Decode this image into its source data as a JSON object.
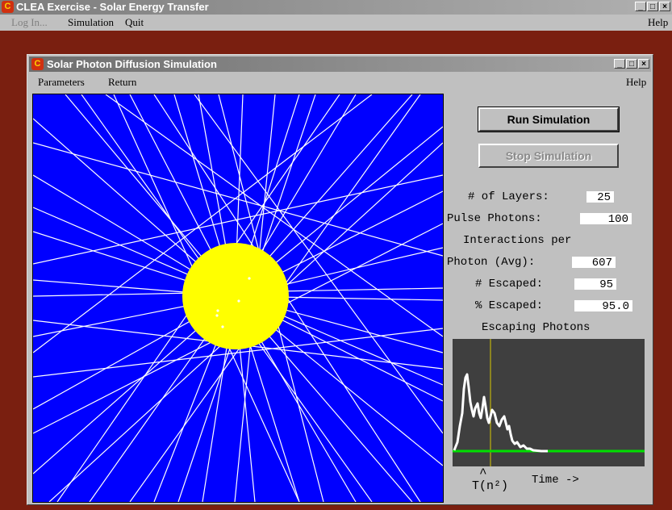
{
  "app": {
    "title": "CLEA Exercise - Solar Energy Transfer",
    "menu": {
      "login": "Log In...",
      "simulation": "Simulation",
      "quit": "Quit",
      "help": "Help"
    }
  },
  "window": {
    "title": "Solar Photon Diffusion Simulation",
    "menu": {
      "parameters": "Parameters",
      "return": "Return",
      "help": "Help"
    }
  },
  "controls": {
    "run_label": "Run Simulation",
    "stop_label": "Stop Simulation"
  },
  "stats": {
    "layers_label": "# of Layers:",
    "layers_value": "25",
    "pulse_label": "Pulse Photons:",
    "pulse_value": "100",
    "interactions_label_1": "Interactions per",
    "interactions_label_2": "Photon (Avg):",
    "interactions_value": "607",
    "escaped_label": "# Escaped:",
    "escaped_value": "95",
    "pct_escaped_label": "% Escaped:",
    "pct_escaped_value": "95.0"
  },
  "graph": {
    "title": "Escaping Photons",
    "xlabel": "Time ->",
    "marker_label": "T(n²)",
    "marker_hat": "^"
  },
  "colors": {
    "sky": "#0000ff",
    "sun": "#ffff00",
    "rays": "#ffffff",
    "graph_bg": "#3f3f3f",
    "baseline": "#00e000",
    "marker": "#d8c800"
  }
}
